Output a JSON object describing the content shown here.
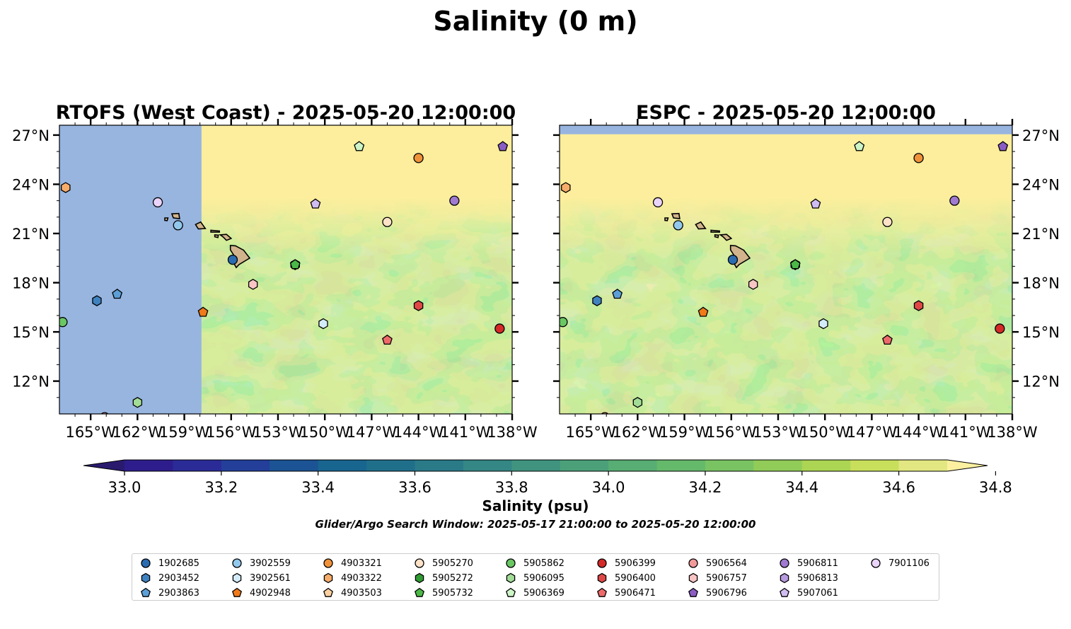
{
  "figure": {
    "suptitle": "Salinity (0 m)",
    "footnote": "Glider/Argo Search Window: 2025-05-17 21:00:00 to 2025-05-20 12:00:00"
  },
  "chart_data": [
    {
      "type": "heatmap",
      "title": "RTOFS (West Coast) - 2025-05-20 12:00:00",
      "xlim": [
        -167,
        -138
      ],
      "ylim": [
        10,
        27.6
      ],
      "x_ticks": [
        "165°W",
        "162°W",
        "159°W",
        "156°W",
        "153°W",
        "150°W",
        "147°W",
        "144°W",
        "141°W",
        "138°W"
      ],
      "x_tick_values": [
        -165,
        -162,
        -159,
        -156,
        -153,
        -150,
        -147,
        -144,
        -141,
        -138
      ],
      "y_ticks": [
        "12°N",
        "15°N",
        "18°N",
        "21°N",
        "24°N",
        "27°N"
      ],
      "y_tick_values": [
        12,
        15,
        18,
        21,
        24,
        27
      ],
      "y_ticks_side": "left",
      "no_data_west_of_lon": -157.9,
      "no_data_north_of_lat": null,
      "fresher_band": "north (near 34.9 psu), saltier/greener mid field (34.4-34.6 psu)"
    },
    {
      "type": "heatmap",
      "title": "ESPC - 2025-05-20 12:00:00",
      "xlim": [
        -167,
        -138
      ],
      "ylim": [
        10,
        27.6
      ],
      "x_ticks": [
        "165°W",
        "162°W",
        "159°W",
        "156°W",
        "153°W",
        "150°W",
        "147°W",
        "144°W",
        "141°W",
        "138°W"
      ],
      "x_tick_values": [
        -165,
        -162,
        -159,
        -156,
        -153,
        -150,
        -147,
        -144,
        -141,
        -138
      ],
      "y_ticks": [
        "12°N",
        "15°N",
        "18°N",
        "21°N",
        "24°N",
        "27°N"
      ],
      "y_tick_values": [
        12,
        15,
        18,
        21,
        24,
        27
      ],
      "y_ticks_side": "right",
      "no_data_west_of_lon": null,
      "no_data_north_of_lat": 27.05
    },
    {
      "type": "colorbar",
      "label": "Salinity (psu)",
      "range": [
        32.9,
        34.9
      ],
      "step": 0.1,
      "extend": "both",
      "ticks": [
        "33.0",
        "33.2",
        "33.4",
        "33.6",
        "33.8",
        "34.0",
        "34.2",
        "34.4",
        "34.6",
        "34.8"
      ],
      "tick_values": [
        33.0,
        33.2,
        33.4,
        33.6,
        33.8,
        34.0,
        34.2,
        34.4,
        34.6,
        34.8
      ],
      "colors": [
        "#2a1a6e",
        "#2d1d8c",
        "#2b2b98",
        "#233f9a",
        "#1b5394",
        "#18658f",
        "#1f6f8b",
        "#2a7a88",
        "#348784",
        "#3f937f",
        "#4ba07a",
        "#57ad73",
        "#65b96b",
        "#79c363",
        "#91cc58",
        "#acd553",
        "#c8df5c",
        "#e2e782",
        "#fcf0a0"
      ]
    }
  ],
  "floats": [
    {
      "id": "1902685",
      "marker": "circle",
      "color": "#2b6cb0",
      "lon": -155.9,
      "lat": 19.4
    },
    {
      "id": "2903452",
      "marker": "hexagon",
      "color": "#3f82c0",
      "lon": -164.6,
      "lat": 16.9
    },
    {
      "id": "2903863",
      "marker": "pentagon",
      "color": "#5c9fd6",
      "lon": -163.3,
      "lat": 17.3
    },
    {
      "id": "3902559",
      "marker": "circle",
      "color": "#92c8ec",
      "lon": -159.4,
      "lat": 21.5
    },
    {
      "id": "3902561",
      "marker": "hexagon",
      "color": "#d4ecfa",
      "lon": -150.1,
      "lat": 15.5
    },
    {
      "id": "4902948",
      "marker": "pentagon",
      "color": "#f07a1a",
      "lon": -157.8,
      "lat": 16.2
    },
    {
      "id": "4903321",
      "marker": "circle",
      "color": "#f0923a",
      "lon": -144.0,
      "lat": 25.6
    },
    {
      "id": "4903322",
      "marker": "hexagon",
      "color": "#f7ad6a",
      "lon": -166.6,
      "lat": 23.8
    },
    {
      "id": "4903503",
      "marker": "pentagon",
      "color": "#fcd0a0",
      "lon": null,
      "lat": null
    },
    {
      "id": "5905270",
      "marker": "circle",
      "color": "#fde2c8",
      "lon": -146.0,
      "lat": 21.7
    },
    {
      "id": "5905272",
      "marker": "hexagon",
      "color": "#2f9b33",
      "lon": -151.9,
      "lat": 19.1
    },
    {
      "id": "5905732",
      "marker": "pentagon",
      "color": "#4cb847",
      "lon": -151.9,
      "lat": 19.1
    },
    {
      "id": "5905862",
      "marker": "circle",
      "color": "#6ac763",
      "lon": -166.8,
      "lat": 15.6
    },
    {
      "id": "5906095",
      "marker": "hexagon",
      "color": "#a2dc96",
      "lon": -162.0,
      "lat": 10.7
    },
    {
      "id": "5906369",
      "marker": "pentagon",
      "color": "#cdf5c8",
      "lon": -147.8,
      "lat": 26.3
    },
    {
      "id": "5906399",
      "marker": "circle",
      "color": "#d42a28",
      "lon": -138.8,
      "lat": 15.2
    },
    {
      "id": "5906400",
      "marker": "hexagon",
      "color": "#e04848",
      "lon": -144.0,
      "lat": 16.6
    },
    {
      "id": "5906471",
      "marker": "pentagon",
      "color": "#ee6a6a",
      "lon": -146.0,
      "lat": 14.5
    },
    {
      "id": "5906564",
      "marker": "circle",
      "color": "#f29a9a",
      "lon": -164.1,
      "lat": 9.8
    },
    {
      "id": "5906757",
      "marker": "hexagon",
      "color": "#f8c4c4",
      "lon": -154.6,
      "lat": 17.9
    },
    {
      "id": "5906796",
      "marker": "pentagon",
      "color": "#8a5cc4",
      "lon": -138.6,
      "lat": 26.3
    },
    {
      "id": "5906811",
      "marker": "circle",
      "color": "#a07ad0",
      "lon": -141.7,
      "lat": 23.0
    },
    {
      "id": "5906813",
      "marker": "hexagon",
      "color": "#b89ae0",
      "lon": null,
      "lat": null
    },
    {
      "id": "5907061",
      "marker": "pentagon",
      "color": "#d0bcf2",
      "lon": -150.6,
      "lat": 22.8
    },
    {
      "id": "7901106",
      "marker": "circle",
      "color": "#ead4fa",
      "lon": -160.7,
      "lat": 22.9
    }
  ]
}
